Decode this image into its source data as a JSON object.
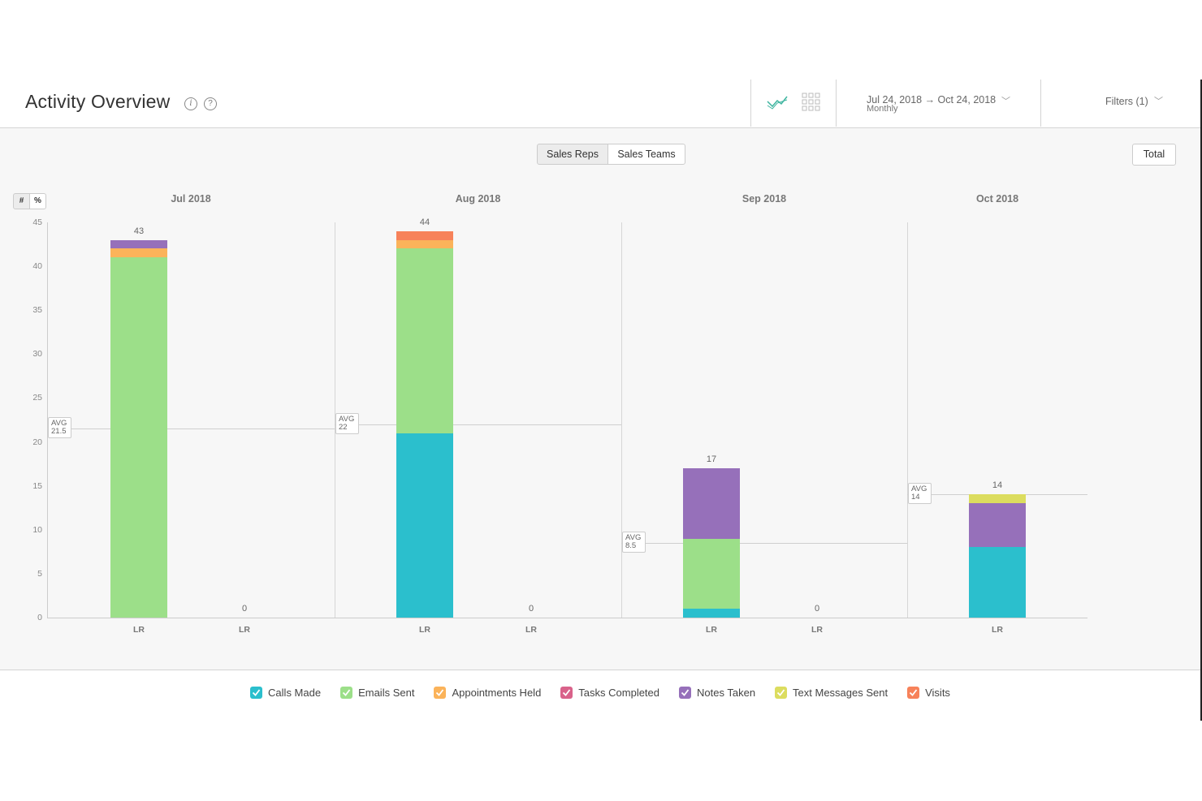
{
  "header": {
    "title": "Activity Overview",
    "info_icon": "info-icon",
    "help_icon": "help-icon",
    "date_range": "Jul 24, 2018 → Oct 24, 2018",
    "date_interval": "Monthly",
    "filters_label": "Filters (1)"
  },
  "toolbar": {
    "tabs": [
      {
        "label": "Sales Reps",
        "selected": true
      },
      {
        "label": "Sales Teams",
        "selected": false
      }
    ],
    "total_label": "Total",
    "mode_toggle": [
      "#",
      "%"
    ]
  },
  "colors": {
    "calls": "#2bbfcd",
    "emails": "#9cdf89",
    "appointments": "#fbb35a",
    "tasks": "#d9628a",
    "notes": "#9670ba",
    "texts": "#dcdd5f",
    "visits": "#f7825a"
  },
  "chart_data": {
    "type": "bar",
    "stacked": true,
    "ylim": [
      0,
      45
    ],
    "yticks": [
      "45",
      "40",
      "35",
      "30",
      "25",
      "20",
      "15",
      "10",
      "5",
      "0"
    ],
    "avg_label": "AVG",
    "groups": [
      {
        "month": "Jul 2018",
        "avg": "21.5",
        "bars": [
          {
            "label": "LR",
            "total": "43",
            "segments": {
              "calls": 0,
              "emails": 41,
              "appointments": 1,
              "tasks": 0,
              "notes": 1,
              "texts": 0,
              "visits": 0
            }
          },
          {
            "label": "LR",
            "total": "0",
            "segments": {}
          }
        ]
      },
      {
        "month": "Aug 2018",
        "avg": "22",
        "bars": [
          {
            "label": "LR",
            "total": "44",
            "segments": {
              "calls": 21,
              "emails": 21,
              "appointments": 1,
              "tasks": 0,
              "notes": 0,
              "texts": 0,
              "visits": 1
            }
          },
          {
            "label": "LR",
            "total": "0",
            "segments": {}
          }
        ]
      },
      {
        "month": "Sep 2018",
        "avg": "8.5",
        "bars": [
          {
            "label": "LR",
            "total": "17",
            "segments": {
              "calls": 1,
              "emails": 8,
              "appointments": 0,
              "tasks": 0,
              "notes": 8,
              "texts": 0,
              "visits": 0
            }
          },
          {
            "label": "LR",
            "total": "0",
            "segments": {}
          }
        ]
      },
      {
        "month": "Oct 2018",
        "avg": "14",
        "bars": [
          {
            "label": "LR",
            "total": "14",
            "segments": {
              "calls": 8,
              "emails": 0,
              "appointments": 0,
              "tasks": 0,
              "notes": 5,
              "texts": 1,
              "visits": 0
            }
          }
        ]
      }
    ]
  },
  "legend": [
    {
      "key": "calls",
      "label": "Calls Made"
    },
    {
      "key": "emails",
      "label": "Emails Sent"
    },
    {
      "key": "appointments",
      "label": "Appointments Held"
    },
    {
      "key": "tasks",
      "label": "Tasks Completed"
    },
    {
      "key": "notes",
      "label": "Notes Taken"
    },
    {
      "key": "texts",
      "label": "Text Messages Sent"
    },
    {
      "key": "visits",
      "label": "Visits"
    }
  ]
}
